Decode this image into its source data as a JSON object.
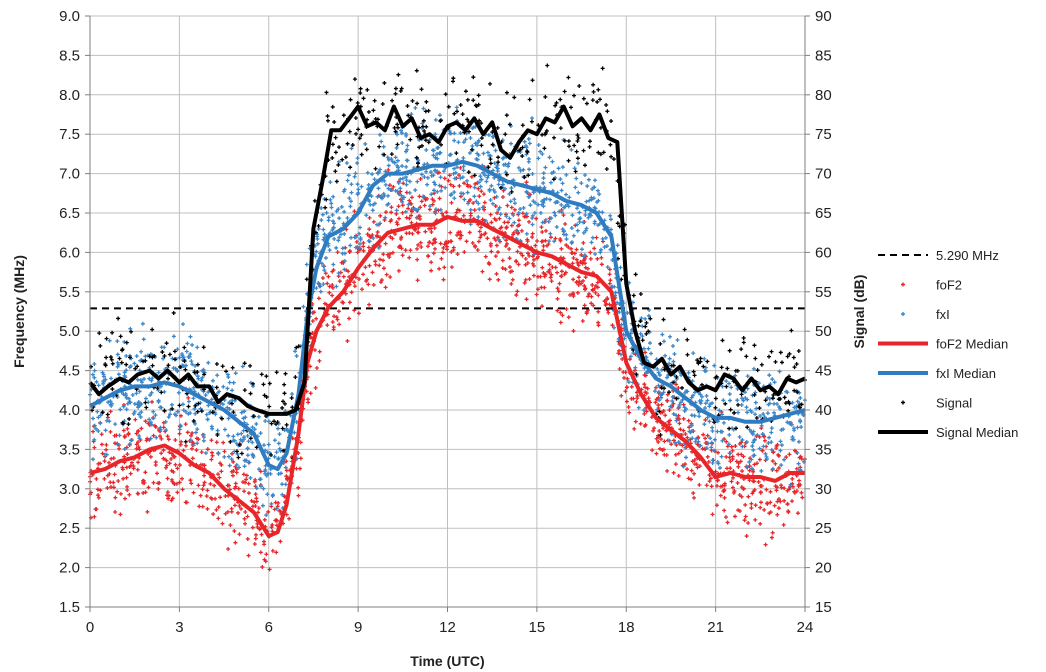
{
  "chart_data": {
    "type": "scatter",
    "xlabel": "Time (UTC)",
    "ylabel": "Frequency (MHz)",
    "y2label": "Signal (dB)",
    "xlim": [
      0,
      24
    ],
    "ylim": [
      1.5,
      9.0
    ],
    "y2lim": [
      15,
      90
    ],
    "x_ticks": [
      "0",
      "3",
      "6",
      "9",
      "12",
      "15",
      "18",
      "21",
      "24"
    ],
    "y_ticks": [
      "1.5",
      "2.0",
      "2.5",
      "3.0",
      "3.5",
      "4.0",
      "4.5",
      "5.0",
      "5.5",
      "6.0",
      "6.5",
      "7.0",
      "7.5",
      "8.0",
      "8.5",
      "9.0"
    ],
    "y2_ticks": [
      "15",
      "20",
      "25",
      "30",
      "35",
      "40",
      "45",
      "50",
      "55",
      "60",
      "65",
      "70",
      "75",
      "80",
      "85",
      "90"
    ],
    "grid": true,
    "legend_position": "right",
    "reference_line": {
      "name": "5.290 MHz",
      "y": 5.29,
      "color": "#000000"
    },
    "series": [
      {
        "name": "foF2",
        "kind": "scatter",
        "color": "#e8262a",
        "axis": "left",
        "x": [
          0,
          1,
          2,
          2.5,
          3,
          4,
          5,
          5.5,
          6,
          6.5,
          7,
          7.5,
          8,
          9,
          10,
          11,
          12,
          13,
          14,
          15,
          16,
          17,
          17.5,
          18,
          19,
          20,
          21,
          22,
          23,
          24
        ],
        "y": [
          3.2,
          3.3,
          3.5,
          3.5,
          3.45,
          3.2,
          2.9,
          2.7,
          2.4,
          2.7,
          3.6,
          4.9,
          5.3,
          5.8,
          6.3,
          6.35,
          6.4,
          6.4,
          6.2,
          6.0,
          5.8,
          5.6,
          5.5,
          4.5,
          3.9,
          3.6,
          3.2,
          3.15,
          3.1,
          3.2
        ],
        "spread": 0.45
      },
      {
        "name": "fxI",
        "kind": "scatter",
        "color": "#3a86c8",
        "axis": "left",
        "x": [
          0,
          1,
          2,
          3,
          4,
          5,
          5.5,
          6,
          6.5,
          7,
          7.5,
          8,
          9,
          10,
          11,
          12,
          13,
          14,
          15,
          16,
          17,
          17.5,
          18,
          19,
          20,
          21,
          22,
          23,
          24
        ],
        "y": [
          4.1,
          4.2,
          4.3,
          4.3,
          4.1,
          3.8,
          3.6,
          3.25,
          3.4,
          4.2,
          5.7,
          6.3,
          6.6,
          7.0,
          7.05,
          7.1,
          7.1,
          6.9,
          6.8,
          6.6,
          6.5,
          6.0,
          5.0,
          4.4,
          4.1,
          3.9,
          3.85,
          3.9,
          4.0
        ],
        "spread": 0.5
      },
      {
        "name": "foF2 Median",
        "kind": "line",
        "color": "#e8262a",
        "axis": "left",
        "x": [
          0,
          0.5,
          1,
          1.5,
          2,
          2.5,
          3,
          3.5,
          4,
          4.5,
          5,
          5.5,
          6,
          6.3,
          6.6,
          7,
          7.3,
          7.6,
          8,
          8.5,
          9,
          9.5,
          10,
          10.5,
          11,
          11.5,
          12,
          12.5,
          13,
          13.5,
          14,
          14.5,
          15,
          15.5,
          16,
          16.5,
          17,
          17.5,
          18,
          18.5,
          19,
          19.5,
          20,
          20.5,
          21,
          21.5,
          22,
          22.5,
          23,
          23.5,
          24
        ],
        "y": [
          3.2,
          3.25,
          3.35,
          3.4,
          3.5,
          3.55,
          3.45,
          3.3,
          3.2,
          3.0,
          2.85,
          2.7,
          2.4,
          2.45,
          2.8,
          3.7,
          4.6,
          5.0,
          5.3,
          5.5,
          5.8,
          6.05,
          6.25,
          6.3,
          6.35,
          6.35,
          6.45,
          6.4,
          6.4,
          6.3,
          6.2,
          6.1,
          6.0,
          5.95,
          5.85,
          5.75,
          5.7,
          5.5,
          4.6,
          4.2,
          3.9,
          3.75,
          3.6,
          3.4,
          3.15,
          3.2,
          3.15,
          3.15,
          3.1,
          3.2,
          3.2
        ]
      },
      {
        "name": "fxI Median",
        "kind": "line",
        "color": "#2f7cc0",
        "axis": "left",
        "x": [
          0,
          0.5,
          1,
          1.5,
          2,
          2.5,
          3,
          3.5,
          4,
          4.5,
          5,
          5.5,
          6,
          6.3,
          6.6,
          7,
          7.3,
          7.6,
          8,
          8.5,
          9,
          9.5,
          10,
          10.5,
          11,
          11.5,
          12,
          12.5,
          13,
          13.5,
          14,
          14.5,
          15,
          15.5,
          16,
          16.5,
          17,
          17.5,
          18,
          18.5,
          19,
          19.5,
          20,
          20.5,
          21,
          21.5,
          22,
          22.5,
          23,
          23.5,
          24
        ],
        "y": [
          4.05,
          4.15,
          4.25,
          4.3,
          4.3,
          4.35,
          4.3,
          4.2,
          4.1,
          4.0,
          3.85,
          3.7,
          3.3,
          3.25,
          3.45,
          4.2,
          5.2,
          5.8,
          6.2,
          6.3,
          6.5,
          6.85,
          7.0,
          7.0,
          7.05,
          7.1,
          7.1,
          7.15,
          7.1,
          7.0,
          6.9,
          6.85,
          6.8,
          6.75,
          6.65,
          6.6,
          6.5,
          6.2,
          5.0,
          4.65,
          4.4,
          4.3,
          4.15,
          4.0,
          3.9,
          3.9,
          3.85,
          3.85,
          3.9,
          3.95,
          4.0
        ]
      },
      {
        "name": "Signal",
        "kind": "scatter",
        "color": "#000000",
        "axis": "right",
        "x": [
          0,
          1,
          2,
          3,
          4,
          5,
          6,
          6.8,
          7.2,
          7.5,
          8,
          9,
          10,
          11,
          12,
          13,
          14,
          15,
          16,
          17,
          17.5,
          18,
          19,
          20,
          21,
          22,
          23,
          24
        ],
        "y": [
          43,
          44,
          45,
          44,
          42,
          41,
          40,
          40,
          45,
          62,
          75,
          77,
          77,
          76,
          76,
          76,
          74,
          76,
          77,
          77,
          75,
          54,
          46,
          45,
          43,
          44,
          43,
          44
        ],
        "spread": 5
      },
      {
        "name": "Signal Median",
        "kind": "line",
        "color": "#000000",
        "axis": "right",
        "x": [
          0,
          0.3,
          0.6,
          1,
          1.3,
          1.6,
          2,
          2.3,
          2.6,
          3,
          3.3,
          3.6,
          4,
          4.3,
          4.6,
          5,
          5.3,
          5.6,
          6,
          6.3,
          6.6,
          6.9,
          7.2,
          7.5,
          7.8,
          8.1,
          8.4,
          8.7,
          9,
          9.3,
          9.6,
          9.9,
          10.2,
          10.5,
          10.8,
          11.1,
          11.4,
          11.7,
          12,
          12.3,
          12.6,
          12.9,
          13.2,
          13.5,
          13.8,
          14.1,
          14.4,
          14.7,
          15,
          15.3,
          15.6,
          15.9,
          16.2,
          16.5,
          16.8,
          17.1,
          17.4,
          17.7,
          18,
          18.3,
          18.6,
          18.9,
          19.2,
          19.5,
          19.8,
          20.1,
          20.4,
          20.7,
          21,
          21.3,
          21.6,
          21.9,
          22.2,
          22.5,
          22.8,
          23.1,
          23.4,
          23.7,
          24
        ],
        "y": [
          43.5,
          42,
          43,
          44,
          43.5,
          44.5,
          45,
          44,
          45,
          43.5,
          44.5,
          43,
          43,
          41,
          42,
          41.5,
          40.5,
          40,
          39.5,
          39.5,
          39.5,
          40,
          43.5,
          63,
          69,
          75.5,
          75.5,
          77,
          78.5,
          76,
          76.5,
          75.5,
          78.5,
          76,
          77,
          74.5,
          75,
          74,
          76,
          76.5,
          75.5,
          77,
          75,
          76.5,
          73,
          72,
          74,
          75.5,
          75,
          77,
          76.5,
          78.5,
          76,
          77,
          75.5,
          77.5,
          74.5,
          74,
          56,
          50,
          46,
          45.5,
          46.5,
          44.5,
          45.5,
          43.5,
          42.5,
          43,
          42.5,
          44.5,
          44,
          42.5,
          44,
          42.5,
          43,
          42,
          44,
          43.5,
          44
        ]
      }
    ]
  }
}
